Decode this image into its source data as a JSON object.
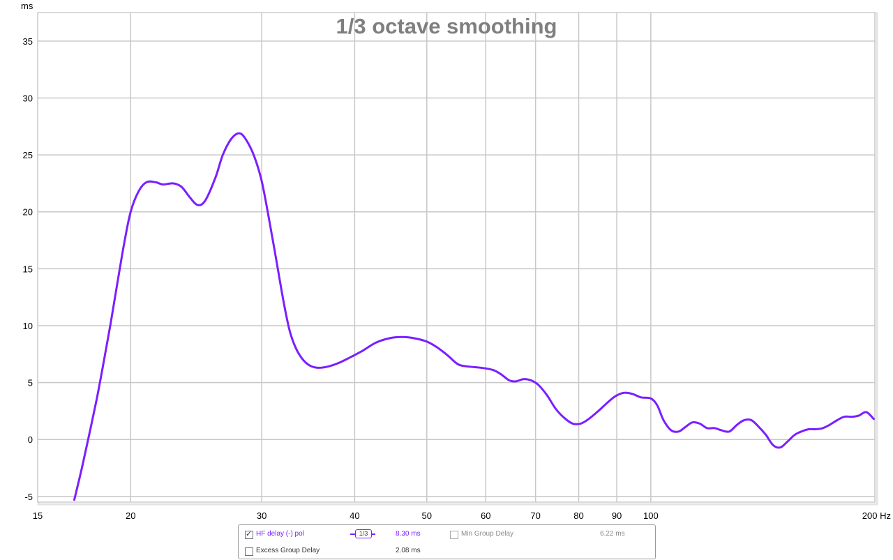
{
  "chart_data": {
    "type": "line",
    "title": "1/3 octave smoothing",
    "ylabel": "ms",
    "xlabel": "",
    "x_unit": "Hz",
    "x_scale": "log",
    "xlim": [
      15,
      200
    ],
    "ylim": [
      -5.5,
      37.5
    ],
    "grid": true,
    "x_ticks": [
      15,
      20,
      30,
      40,
      50,
      60,
      70,
      80,
      90,
      100,
      200
    ],
    "x_tick_labels": [
      "15",
      "20",
      "30",
      "40",
      "50",
      "60",
      "70",
      "80",
      "90",
      "100",
      "200 Hz"
    ],
    "y_ticks": [
      -5,
      0,
      5,
      10,
      15,
      20,
      25,
      30,
      35
    ],
    "y_tick_labels": [
      "-5",
      "0",
      "5",
      "10",
      "15",
      "20",
      "25",
      "30",
      "35"
    ],
    "series": [
      {
        "name": "HF delay (-) pol",
        "color": "#7a1fff",
        "x": [
          16.8,
          17.2,
          17.6,
          18.0,
          18.4,
          18.8,
          19.2,
          19.6,
          20.0,
          20.5,
          21.0,
          21.6,
          22.1,
          22.8,
          23.4,
          24.0,
          24.6,
          25.2,
          26.0,
          26.6,
          27.3,
          28.0,
          28.6,
          29.3,
          30.0,
          30.7,
          31.4,
          32.1,
          32.7,
          33.3,
          34.0,
          34.8,
          35.7,
          36.8,
          38.0,
          39.4,
          41.0,
          42.7,
          44.6,
          46.3,
          48.0,
          50.0,
          51.6,
          53.3,
          55.1,
          57.0,
          59.2,
          61.4,
          63.0,
          64.5,
          65.8,
          67.4,
          69.0,
          70.6,
          72.5,
          74.5,
          76.5,
          78.5,
          80.5,
          82.5,
          85.0,
          87.3,
          89.6,
          92.0,
          94.5,
          97.0,
          100.0,
          102.0,
          104.0,
          106.5,
          109.0,
          111.3,
          113.7,
          116.3,
          119.0,
          121.8,
          124.5,
          127.5,
          130.6,
          133.5,
          136.5,
          139.7,
          142.8,
          146.0,
          149.3,
          152.5,
          156.0,
          159.3,
          163.0,
          166.6,
          170.2,
          174.0,
          178.0,
          182.0,
          186.3,
          190.3,
          194.8,
          199.3
        ],
        "y": [
          -5.3,
          -2.5,
          0.5,
          3.5,
          6.8,
          10.2,
          13.8,
          17.2,
          20.0,
          21.8,
          22.6,
          22.6,
          22.4,
          22.5,
          22.2,
          21.3,
          20.6,
          21.0,
          23.0,
          25.0,
          26.4,
          26.9,
          26.3,
          24.9,
          22.7,
          19.3,
          15.7,
          12.1,
          9.6,
          8.1,
          7.1,
          6.5,
          6.3,
          6.4,
          6.7,
          7.2,
          7.8,
          8.5,
          8.9,
          9.0,
          8.9,
          8.6,
          8.1,
          7.4,
          6.6,
          6.4,
          6.3,
          6.1,
          5.7,
          5.2,
          5.1,
          5.3,
          5.2,
          4.8,
          3.9,
          2.7,
          1.9,
          1.4,
          1.4,
          1.8,
          2.5,
          3.2,
          3.8,
          4.1,
          4.0,
          3.7,
          3.6,
          3.0,
          1.7,
          0.8,
          0.7,
          1.1,
          1.5,
          1.4,
          1.0,
          1.0,
          0.8,
          0.7,
          1.3,
          1.7,
          1.7,
          1.1,
          0.4,
          -0.5,
          -0.7,
          -0.2,
          0.4,
          0.7,
          0.9,
          0.9,
          1.0,
          1.3,
          1.7,
          2.0,
          2.0,
          2.1,
          2.4,
          1.8
        ]
      }
    ]
  },
  "legend": {
    "row1": {
      "checked": true,
      "label": "HF delay (-) pol",
      "smoothing": "1/3",
      "value": "8.30 ms",
      "secondary_checked": false,
      "secondary_label": "Min Group Delay",
      "secondary_value": "6.22 ms"
    },
    "row2": {
      "checked": false,
      "label": "Excess Group Delay",
      "value": "2.08 ms"
    }
  },
  "colors": {
    "curve": "#7a1fff",
    "grid": "#c8c8c8",
    "title": "#7f7f7f",
    "axis_text": "#000000"
  }
}
